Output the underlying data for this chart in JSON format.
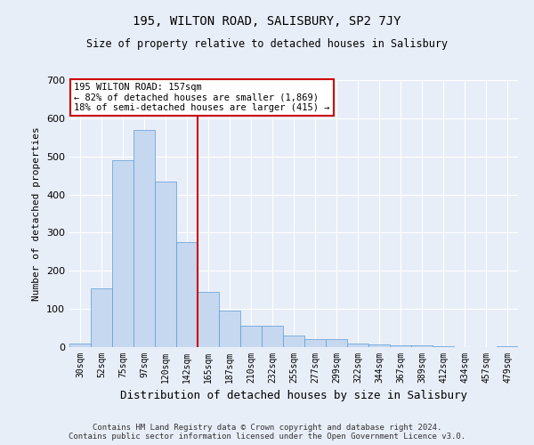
{
  "title": "195, WILTON ROAD, SALISBURY, SP2 7JY",
  "subtitle": "Size of property relative to detached houses in Salisbury",
  "xlabel": "Distribution of detached houses by size in Salisbury",
  "ylabel": "Number of detached properties",
  "footer_line1": "Contains HM Land Registry data © Crown copyright and database right 2024.",
  "footer_line2": "Contains public sector information licensed under the Open Government Licence v3.0.",
  "annotation_line1": "195 WILTON ROAD: 157sqm",
  "annotation_line2": "← 82% of detached houses are smaller (1,869)",
  "annotation_line3": "18% of semi-detached houses are larger (415) →",
  "bar_color": "#c5d8f0",
  "bar_edge_color": "#5b9bd5",
  "vline_color": "#cc0000",
  "vline_x": 5.5,
  "categories": [
    "30sqm",
    "52sqm",
    "75sqm",
    "97sqm",
    "120sqm",
    "142sqm",
    "165sqm",
    "187sqm",
    "210sqm",
    "232sqm",
    "255sqm",
    "277sqm",
    "299sqm",
    "322sqm",
    "344sqm",
    "367sqm",
    "389sqm",
    "412sqm",
    "434sqm",
    "457sqm",
    "479sqm"
  ],
  "values": [
    10,
    155,
    490,
    570,
    435,
    275,
    145,
    95,
    55,
    55,
    30,
    20,
    20,
    10,
    7,
    4,
    4,
    3,
    1,
    1,
    3
  ],
  "ylim": [
    0,
    700
  ],
  "yticks": [
    0,
    100,
    200,
    300,
    400,
    500,
    600,
    700
  ],
  "background_color": "#e8eef8",
  "grid_color": "#ffffff",
  "annotation_box_color": "#ffffff",
  "annotation_box_edge_color": "#cc0000"
}
